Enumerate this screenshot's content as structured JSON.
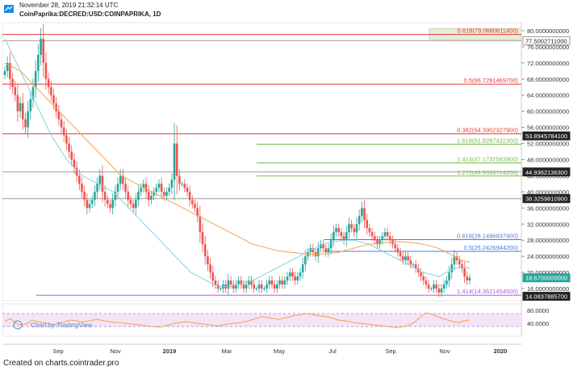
{
  "header": {
    "timestamp": "November 28, 2019 21:32:14 UTC",
    "symbol": "CoinPaprika:DECRED:USD:COINPAPRIKA, 1D"
  },
  "footer": {
    "credit": "Created on charts.cointrader.pro"
  },
  "watermark": "Chart by TradingView",
  "colors": {
    "up": "#26a69a",
    "down": "#ef5350",
    "ma_fast": "#7fd1e0",
    "ma_slow": "#f6a04d",
    "fib_red": "#e53935",
    "fib_green": "#76b947",
    "fib_blue": "#4a7bd6",
    "fib_purple": "#b05cd8",
    "rsi": "#f6a04d",
    "rsi_band": "#f3e5f5"
  },
  "chart_data": {
    "type": "candlestick",
    "price_axis": {
      "ylim": [
        13,
        82
      ],
      "ticks": [
        "80.0000000000",
        "76.0000000000",
        "72.0000000000",
        "68.0000000000",
        "64.0000000000",
        "60.0000000000",
        "56.0000000000",
        "52.0000000000",
        "48.0000000000",
        "44.0000000000",
        "40.0000000000",
        "36.0000000000",
        "32.0000000000",
        "28.0000000000",
        "24.0000000000",
        "20.0000000000",
        "16.0000000000"
      ],
      "tick_values": [
        80,
        76,
        72,
        68,
        64,
        60,
        56,
        52,
        48,
        44,
        40,
        36,
        32,
        28,
        24,
        20,
        16
      ],
      "badges": [
        {
          "label": "77.5002711000",
          "value": 77.5,
          "color": "#ffffff",
          "text": "#222222"
        },
        {
          "label": "53.8945784100",
          "value": 53.89,
          "color": "#222222",
          "text": "#ffffff"
        },
        {
          "label": "44.9362136300",
          "value": 44.94,
          "color": "#222222",
          "text": "#ffffff"
        },
        {
          "label": "38.3259810900",
          "value": 38.33,
          "color": "#222222",
          "text": "#ffffff"
        },
        {
          "label": "18.6700000000",
          "value": 18.67,
          "color": "#26a69a",
          "text": "#ffffff"
        },
        {
          "label": "14.0837885700",
          "value": 14.08,
          "color": "#222222",
          "text": "#ffffff"
        }
      ]
    },
    "rsi_axis": {
      "ticks": [
        "80.0000",
        "40.0000"
      ],
      "tick_values": [
        80,
        40
      ],
      "ylim": [
        0,
        100
      ],
      "band": [
        30,
        70
      ]
    },
    "x_ticks": [
      "Sep",
      "Nov",
      "2019",
      "Mar",
      "May",
      "Jul",
      "Sep",
      "Nov",
      "2020"
    ],
    "fib_levels": [
      {
        "label": "0.618(79.0680611400)",
        "value": 79.07,
        "color": "#e53935",
        "x_start": 0.0
      },
      {
        "label": "0.5(66.7291469700)",
        "value": 66.73,
        "color": "#e53935",
        "x_start": 0.0
      },
      {
        "label": "0.382(54.3902327900)",
        "value": 54.39,
        "color": "#e53935",
        "x_start": 0.0
      },
      {
        "label": "1.618(51.8287432300)",
        "value": 51.83,
        "color": "#76b947",
        "x_start": 0.49
      },
      {
        "label": "1.414(47.1732563900)",
        "value": 47.17,
        "color": "#76b947",
        "x_start": 0.49
      },
      {
        "label": "1.272(43.9326724200)",
        "value": 43.93,
        "color": "#76b947",
        "x_start": 0.49
      },
      {
        "label": "0.618(28.1496837900)",
        "value": 28.15,
        "color": "#4a7bd6",
        "x_start": 0.62
      },
      {
        "label": "0.5(25.2426944200)",
        "value": 25.24,
        "color": "#4a7bd6",
        "x_start": 0.62
      },
      {
        "label": "1.414(14.3621454500)",
        "value": 14.36,
        "color": "#b05cd8",
        "x_start": 0.065
      }
    ],
    "gray_levels": [
      77.5,
      44.94,
      38.33
    ],
    "close": [
      70,
      72,
      68,
      66,
      64,
      60,
      62,
      58,
      56,
      60,
      63,
      66,
      70,
      74,
      78,
      72,
      68,
      66,
      64,
      62,
      60,
      58,
      56,
      54,
      52,
      50,
      48,
      46,
      44,
      42,
      40,
      38,
      36,
      37,
      38,
      40,
      42,
      44,
      40,
      38,
      37,
      36,
      38,
      40,
      42,
      44,
      42,
      40,
      38,
      37,
      36,
      38,
      40,
      41,
      42,
      40,
      38,
      39,
      40,
      41,
      42,
      40,
      39,
      40,
      41,
      43,
      52,
      44,
      42,
      42,
      41,
      40,
      38,
      37,
      36,
      34,
      30,
      27,
      24,
      22,
      20,
      18,
      17,
      16,
      16,
      17,
      16,
      18,
      17,
      16,
      17,
      18,
      17,
      16,
      17,
      18,
      17,
      16,
      16,
      17,
      16,
      16,
      17,
      18,
      17,
      16,
      17,
      18,
      17,
      18,
      19,
      20,
      19,
      18,
      19,
      20,
      22,
      24,
      25,
      26,
      25,
      24,
      26,
      27,
      26,
      25,
      26,
      28,
      30,
      31,
      30,
      29,
      28,
      30,
      32,
      31,
      30,
      32,
      34,
      36,
      33,
      31,
      30,
      29,
      28,
      27,
      28,
      29,
      30,
      29,
      28,
      27,
      26,
      25,
      24,
      23,
      24,
      23,
      22,
      22,
      21,
      20,
      19,
      18,
      17,
      16,
      16,
      17,
      16,
      15,
      16,
      17,
      18,
      20,
      22,
      24,
      23,
      22,
      21,
      19,
      18,
      18.67
    ],
    "ma_slow": [
      72,
      71,
      70,
      68,
      66,
      64,
      62,
      60,
      58,
      56,
      54,
      52,
      50,
      48,
      46,
      44,
      43,
      42,
      41,
      40,
      39,
      38,
      37,
      36,
      35,
      34,
      33,
      32,
      31,
      30,
      29,
      28,
      27,
      26.5,
      26,
      25.5,
      25.2,
      25,
      24.8,
      24.6,
      24.5,
      24.6,
      24.8,
      25,
      25.5,
      26,
      26.5,
      27,
      27.2,
      27.4,
      27.6,
      27.6,
      27.5,
      27.3,
      27,
      26.5,
      26,
      25,
      24,
      23,
      22.5
    ],
    "ma_fast": [
      78,
      74,
      70,
      66,
      62,
      58,
      54,
      51,
      48,
      46,
      44,
      43,
      42,
      41,
      40,
      38,
      36,
      34,
      32,
      30,
      28,
      26,
      24,
      22,
      20,
      19,
      18,
      17,
      16.5,
      16.5,
      17,
      17.5,
      18,
      19,
      20,
      21,
      22,
      23,
      24,
      25,
      26,
      27,
      27.5,
      27.8,
      28,
      28,
      27.5,
      27,
      26,
      25,
      24,
      23,
      22,
      21,
      20,
      19.5,
      19,
      20,
      21,
      21.5,
      21
    ],
    "rsi": [
      45,
      55,
      40,
      35,
      38,
      50,
      45,
      42,
      38,
      35,
      40,
      45,
      50,
      48,
      44,
      46,
      50,
      52,
      48,
      45,
      43,
      42,
      40,
      38,
      36,
      34,
      32,
      30,
      28,
      30,
      35,
      40,
      42,
      45,
      43,
      40,
      38,
      36,
      34,
      32,
      35,
      38,
      40,
      42,
      45,
      50,
      55,
      60,
      58,
      55,
      52,
      56,
      60,
      64,
      66,
      70,
      68,
      65,
      62,
      60,
      55,
      50,
      48,
      45,
      42,
      40,
      38,
      36,
      34,
      32,
      30,
      28,
      27,
      30,
      35,
      45,
      60,
      72,
      68,
      62,
      55,
      50,
      45,
      42,
      48,
      50
    ]
  }
}
